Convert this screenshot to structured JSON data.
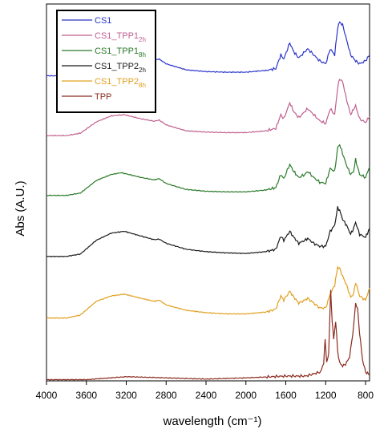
{
  "chart_data": {
    "type": "line",
    "title": "",
    "xlabel": "wavelength (cm⁻¹)",
    "ylabel": "Abs (A.U.)",
    "xlim": [
      4000,
      760
    ],
    "x_reversed": true,
    "ylim": [
      0,
      6.3
    ],
    "ytick_labels": false,
    "grid": false,
    "legend_position": "top-left",
    "x_ticks": [
      4000,
      3600,
      3200,
      2800,
      2400,
      2000,
      1600,
      1200,
      800
    ],
    "series": [
      {
        "name": "CS1",
        "color": "#2b35c8",
        "points": [
          [
            4000,
            5.1
          ],
          [
            3800,
            5.1
          ],
          [
            3660,
            5.14
          ],
          [
            3500,
            5.35
          ],
          [
            3350,
            5.45
          ],
          [
            3200,
            5.46
          ],
          [
            3050,
            5.4
          ],
          [
            2920,
            5.36
          ],
          [
            2870,
            5.38
          ],
          [
            2800,
            5.3
          ],
          [
            2600,
            5.2
          ],
          [
            2400,
            5.17
          ],
          [
            2200,
            5.16
          ],
          [
            2000,
            5.16
          ],
          [
            1800,
            5.19
          ],
          [
            1700,
            5.22
          ],
          [
            1650,
            5.45
          ],
          [
            1620,
            5.38
          ],
          [
            1560,
            5.65
          ],
          [
            1520,
            5.5
          ],
          [
            1470,
            5.4
          ],
          [
            1410,
            5.5
          ],
          [
            1380,
            5.55
          ],
          [
            1320,
            5.45
          ],
          [
            1260,
            5.35
          ],
          [
            1200,
            5.3
          ],
          [
            1155,
            5.55
          ],
          [
            1110,
            5.45
          ],
          [
            1080,
            5.9
          ],
          [
            1060,
            6.0
          ],
          [
            1030,
            5.95
          ],
          [
            990,
            5.7
          ],
          [
            950,
            5.45
          ],
          [
            900,
            5.35
          ],
          [
            860,
            5.3
          ],
          [
            800,
            5.35
          ],
          [
            760,
            5.45
          ]
        ]
      },
      {
        "name": "CS1_TPP1",
        "name_subscript": "2h",
        "color": "#c0608f",
        "points": [
          [
            4000,
            4.1
          ],
          [
            3800,
            4.1
          ],
          [
            3660,
            4.14
          ],
          [
            3500,
            4.33
          ],
          [
            3350,
            4.43
          ],
          [
            3220,
            4.45
          ],
          [
            3050,
            4.38
          ],
          [
            2920,
            4.34
          ],
          [
            2870,
            4.36
          ],
          [
            2800,
            4.28
          ],
          [
            2600,
            4.18
          ],
          [
            2400,
            4.16
          ],
          [
            2200,
            4.15
          ],
          [
            2000,
            4.15
          ],
          [
            1800,
            4.18
          ],
          [
            1700,
            4.22
          ],
          [
            1650,
            4.45
          ],
          [
            1620,
            4.38
          ],
          [
            1560,
            4.65
          ],
          [
            1520,
            4.5
          ],
          [
            1470,
            4.4
          ],
          [
            1410,
            4.5
          ],
          [
            1380,
            4.55
          ],
          [
            1320,
            4.45
          ],
          [
            1260,
            4.35
          ],
          [
            1200,
            4.3
          ],
          [
            1155,
            4.55
          ],
          [
            1110,
            4.45
          ],
          [
            1080,
            4.9
          ],
          [
            1060,
            5.05
          ],
          [
            1030,
            5.0
          ],
          [
            990,
            4.7
          ],
          [
            950,
            4.45
          ],
          [
            900,
            4.6
          ],
          [
            860,
            4.38
          ],
          [
            800,
            4.32
          ],
          [
            760,
            4.42
          ]
        ]
      },
      {
        "name": "CS1_TPP1",
        "name_subscript": "8h",
        "color": "#2a7a2a",
        "points": [
          [
            4000,
            3.1
          ],
          [
            3800,
            3.1
          ],
          [
            3660,
            3.14
          ],
          [
            3500,
            3.35
          ],
          [
            3350,
            3.45
          ],
          [
            3250,
            3.48
          ],
          [
            3050,
            3.4
          ],
          [
            2920,
            3.36
          ],
          [
            2870,
            3.38
          ],
          [
            2800,
            3.3
          ],
          [
            2600,
            3.2
          ],
          [
            2400,
            3.17
          ],
          [
            2200,
            3.16
          ],
          [
            2000,
            3.16
          ],
          [
            1800,
            3.19
          ],
          [
            1700,
            3.23
          ],
          [
            1650,
            3.45
          ],
          [
            1620,
            3.38
          ],
          [
            1560,
            3.62
          ],
          [
            1520,
            3.5
          ],
          [
            1470,
            3.4
          ],
          [
            1410,
            3.45
          ],
          [
            1380,
            3.5
          ],
          [
            1320,
            3.4
          ],
          [
            1260,
            3.32
          ],
          [
            1200,
            3.3
          ],
          [
            1155,
            3.55
          ],
          [
            1110,
            3.5
          ],
          [
            1080,
            3.9
          ],
          [
            1060,
            3.95
          ],
          [
            1030,
            3.8
          ],
          [
            990,
            3.6
          ],
          [
            950,
            3.45
          ],
          [
            920,
            3.5
          ],
          [
            900,
            3.7
          ],
          [
            860,
            3.45
          ],
          [
            800,
            3.4
          ],
          [
            760,
            3.58
          ]
        ]
      },
      {
        "name": "CS1_TPP2",
        "name_subscript": "2h",
        "color": "#1a1a1a",
        "points": [
          [
            4000,
            2.08
          ],
          [
            3800,
            2.08
          ],
          [
            3660,
            2.12
          ],
          [
            3500,
            2.35
          ],
          [
            3350,
            2.47
          ],
          [
            3220,
            2.5
          ],
          [
            3050,
            2.42
          ],
          [
            2920,
            2.36
          ],
          [
            2870,
            2.37
          ],
          [
            2800,
            2.3
          ],
          [
            2600,
            2.2
          ],
          [
            2400,
            2.16
          ],
          [
            2200,
            2.14
          ],
          [
            2000,
            2.13
          ],
          [
            1800,
            2.16
          ],
          [
            1700,
            2.2
          ],
          [
            1650,
            2.42
          ],
          [
            1620,
            2.35
          ],
          [
            1560,
            2.5
          ],
          [
            1520,
            2.4
          ],
          [
            1470,
            2.3
          ],
          [
            1410,
            2.35
          ],
          [
            1380,
            2.38
          ],
          [
            1320,
            2.3
          ],
          [
            1260,
            2.25
          ],
          [
            1200,
            2.25
          ],
          [
            1155,
            2.5
          ],
          [
            1110,
            2.6
          ],
          [
            1080,
            2.9
          ],
          [
            1060,
            2.85
          ],
          [
            1030,
            2.7
          ],
          [
            990,
            2.6
          ],
          [
            950,
            2.45
          ],
          [
            920,
            2.55
          ],
          [
            900,
            2.65
          ],
          [
            860,
            2.45
          ],
          [
            800,
            2.4
          ],
          [
            760,
            2.55
          ]
        ]
      },
      {
        "name": "CS1_TPP2",
        "name_subscript": "8h",
        "color": "#e0a020",
        "points": [
          [
            4000,
            1.05
          ],
          [
            3800,
            1.05
          ],
          [
            3660,
            1.1
          ],
          [
            3500,
            1.33
          ],
          [
            3350,
            1.42
          ],
          [
            3220,
            1.45
          ],
          [
            3050,
            1.38
          ],
          [
            2920,
            1.33
          ],
          [
            2870,
            1.35
          ],
          [
            2800,
            1.27
          ],
          [
            2600,
            1.18
          ],
          [
            2400,
            1.14
          ],
          [
            2200,
            1.12
          ],
          [
            2000,
            1.12
          ],
          [
            1800,
            1.15
          ],
          [
            1700,
            1.2
          ],
          [
            1650,
            1.42
          ],
          [
            1620,
            1.35
          ],
          [
            1560,
            1.5
          ],
          [
            1520,
            1.4
          ],
          [
            1470,
            1.3
          ],
          [
            1410,
            1.35
          ],
          [
            1380,
            1.38
          ],
          [
            1320,
            1.3
          ],
          [
            1260,
            1.22
          ],
          [
            1200,
            1.22
          ],
          [
            1155,
            1.45
          ],
          [
            1110,
            1.6
          ],
          [
            1080,
            1.9
          ],
          [
            1060,
            1.88
          ],
          [
            1030,
            1.75
          ],
          [
            990,
            1.6
          ],
          [
            950,
            1.4
          ],
          [
            920,
            1.45
          ],
          [
            900,
            1.65
          ],
          [
            860,
            1.42
          ],
          [
            800,
            1.35
          ],
          [
            760,
            1.55
          ]
        ]
      },
      {
        "name": "TPP",
        "color": "#8b2a1e",
        "points": [
          [
            4000,
            0.02
          ],
          [
            3600,
            0.02
          ],
          [
            3200,
            0.07
          ],
          [
            2800,
            0.05
          ],
          [
            2400,
            0.03
          ],
          [
            2000,
            0.05
          ],
          [
            1600,
            0.08
          ],
          [
            1400,
            0.08
          ],
          [
            1250,
            0.15
          ],
          [
            1220,
            0.3
          ],
          [
            1205,
            0.7
          ],
          [
            1190,
            0.3
          ],
          [
            1170,
            0.45
          ],
          [
            1150,
            1.5
          ],
          [
            1135,
            1.0
          ],
          [
            1120,
            0.7
          ],
          [
            1100,
            1.0
          ],
          [
            1080,
            0.5
          ],
          [
            1060,
            0.3
          ],
          [
            1030,
            0.25
          ],
          [
            1000,
            0.28
          ],
          [
            960,
            0.4
          ],
          [
            920,
            0.9
          ],
          [
            900,
            1.3
          ],
          [
            880,
            1.2
          ],
          [
            860,
            0.8
          ],
          [
            830,
            0.35
          ],
          [
            800,
            0.15
          ],
          [
            760,
            0.1
          ]
        ]
      }
    ]
  }
}
